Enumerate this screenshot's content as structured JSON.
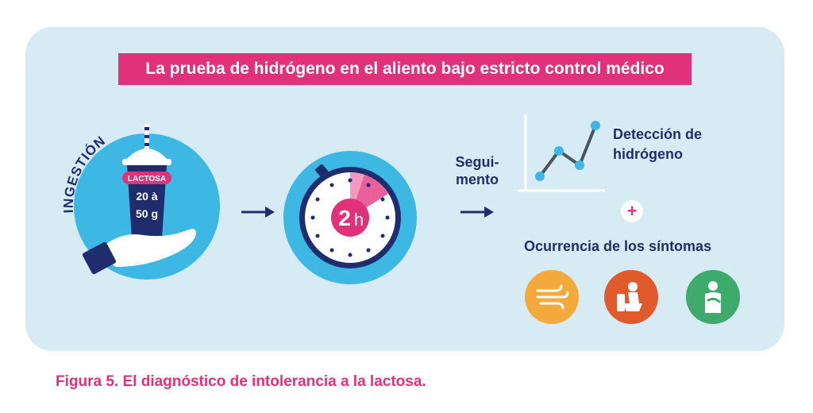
{
  "banner": {
    "title": "La prueba de hidrógeno en el aliento bajo estricto control médico"
  },
  "ingestion": {
    "label": "INGESTIÓN",
    "cup_label": "LACTOSA",
    "amount_line1": "20 à",
    "amount_line2": "50 g"
  },
  "timer": {
    "number": "2",
    "unit": "h"
  },
  "followup": {
    "line1": "Segui-",
    "line2": "mento"
  },
  "detection": {
    "line1": "Detección de",
    "line2": "hidrógeno"
  },
  "plus": "+",
  "symptoms": {
    "label": "Ocurrencia de los síntomas",
    "icons": [
      {
        "name": "wind-icon",
        "color": "#f4a93b"
      },
      {
        "name": "toilet-icon",
        "color": "#e05a2b"
      },
      {
        "name": "stomach-ache-icon",
        "color": "#3eaa6c"
      }
    ]
  },
  "colors": {
    "navy": "#1f2d6e",
    "pink": "#e0317a",
    "light_blue": "#3db7e4",
    "panel": "#d7ebf5"
  },
  "caption": "Figura 5. El diagnóstico de intolerancia a la lactosa."
}
